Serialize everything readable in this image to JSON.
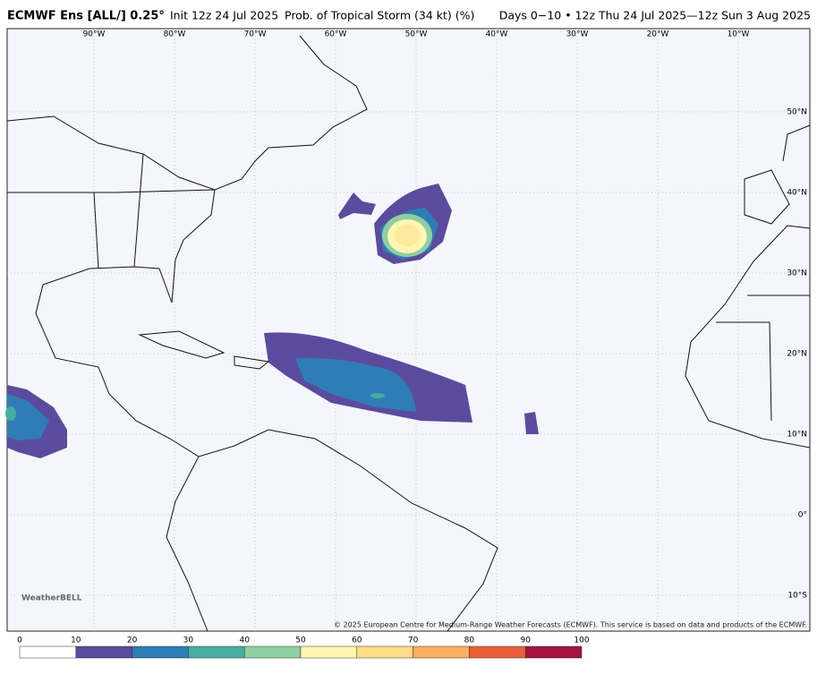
{
  "header": {
    "model": "ECMWF Ens [ALL/] 0.25°",
    "init": "Init 12z 24 Jul 2025",
    "product": "Prob. of Tropical Storm (34 kt) (%)",
    "valid": "Days 0−10 • 12z Thu 24 Jul 2025—12z Sun 3 Aug 2025"
  },
  "map": {
    "lon_labels": [
      "90°W",
      "80°W",
      "70°W",
      "60°W",
      "50°W",
      "40°W",
      "30°W",
      "20°W",
      "10°W"
    ],
    "lat_labels": [
      "50°N",
      "40°N",
      "30°N",
      "20°N",
      "10°N",
      "0°",
      "10°S"
    ],
    "logo": "WeatherBELL",
    "copyright": "© 2025 European Centre for Medium-Range Weather Forecasts (ECMWF). This service is based on data and products of the ECMWF."
  },
  "colorbar": {
    "ticks": [
      0,
      10,
      20,
      30,
      40,
      50,
      60,
      70,
      80,
      90,
      100
    ],
    "colors": [
      "#ffffff",
      "#5b4b9e",
      "#2f7db6",
      "#46ad9f",
      "#8fd0a0",
      "#fff6b2",
      "#fddc86",
      "#fcae61",
      "#e8603a",
      "#a4123f"
    ]
  }
}
